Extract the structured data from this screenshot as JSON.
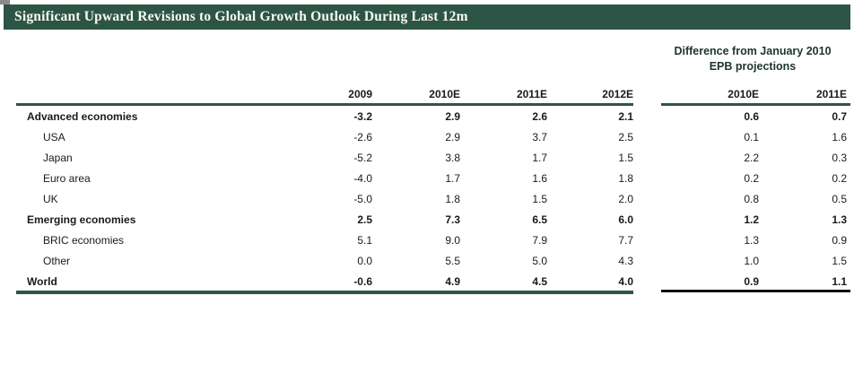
{
  "title_bar": {
    "text": "Significant Upward Revisions to Global Growth Outlook During Last 12m",
    "bg_color": "#2d5546",
    "text_color": "#faf9f2"
  },
  "diff_header": {
    "line1": "Difference from January 2010",
    "line2": "EPB projections"
  },
  "columns": {
    "main": [
      "2009",
      "2010E",
      "2011E",
      "2012E"
    ],
    "diff": [
      "2010E",
      "2011E"
    ]
  },
  "chart_data": {
    "type": "table",
    "title": "Significant Upward Revisions to Global Growth Outlook During Last 12m",
    "main_columns": [
      "2009",
      "2010E",
      "2011E",
      "2012E"
    ],
    "diff_columns": [
      "2010E",
      "2011E"
    ],
    "diff_group_label": "Difference from January 2010 EPB projections",
    "rows": [
      {
        "label": "Advanced economies",
        "values": [
          "-3.2",
          "2.9",
          "2.6",
          "2.1"
        ],
        "diff": [
          "0.6",
          "0.7"
        ],
        "bold": true,
        "indent": false
      },
      {
        "label": "USA",
        "values": [
          "-2.6",
          "2.9",
          "3.7",
          "2.5"
        ],
        "diff": [
          "0.1",
          "1.6"
        ],
        "bold": false,
        "indent": true
      },
      {
        "label": "Japan",
        "values": [
          "-5.2",
          "3.8",
          "1.7",
          "1.5"
        ],
        "diff": [
          "2.2",
          "0.3"
        ],
        "bold": false,
        "indent": true
      },
      {
        "label": "Euro area",
        "values": [
          "-4.0",
          "1.7",
          "1.6",
          "1.8"
        ],
        "diff": [
          "0.2",
          "0.2"
        ],
        "bold": false,
        "indent": true
      },
      {
        "label": "UK",
        "values": [
          "-5.0",
          "1.8",
          "1.5",
          "2.0"
        ],
        "diff": [
          "0.8",
          "0.5"
        ],
        "bold": false,
        "indent": true
      },
      {
        "label": "Emerging economies",
        "values": [
          "2.5",
          "7.3",
          "6.5",
          "6.0"
        ],
        "diff": [
          "1.2",
          "1.3"
        ],
        "bold": true,
        "indent": false
      },
      {
        "label": "BRIC economies",
        "values": [
          "5.1",
          "9.0",
          "7.9",
          "7.7"
        ],
        "diff": [
          "1.3",
          "0.9"
        ],
        "bold": false,
        "indent": true
      },
      {
        "label": "Other",
        "values": [
          "0.0",
          "5.5",
          "5.0",
          "4.3"
        ],
        "diff": [
          "1.0",
          "1.5"
        ],
        "bold": false,
        "indent": true
      },
      {
        "label": "World",
        "values": [
          "-0.6",
          "4.9",
          "4.5",
          "4.0"
        ],
        "diff": [
          "0.9",
          "1.1"
        ],
        "bold": true,
        "indent": false
      }
    ]
  },
  "colors": {
    "accent_green": "#2d5546",
    "bottom_rule_right": "#111111",
    "text": "#1a1a1a"
  }
}
